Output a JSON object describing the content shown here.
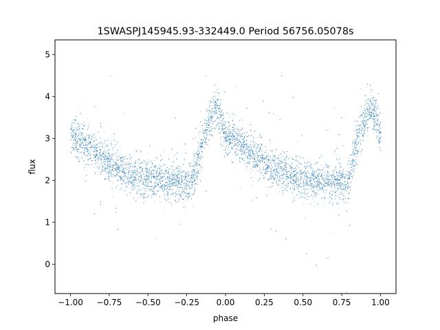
{
  "chart_data": {
    "type": "scatter",
    "title": "1SWASPJ145945.93-332449.0 Period 56756.05078s",
    "xlabel": "phase",
    "ylabel": "flux",
    "xlim": [
      -1.1,
      1.1
    ],
    "ylim": [
      -0.7,
      5.35
    ],
    "xticks": [
      -1.0,
      -0.75,
      -0.5,
      -0.25,
      0.0,
      0.25,
      0.5,
      0.75,
      1.0
    ],
    "xtick_labels": [
      "−1.00",
      "−0.75",
      "−0.50",
      "−0.25",
      "0.00",
      "0.25",
      "0.50",
      "0.75",
      "1.00"
    ],
    "yticks": [
      0,
      1,
      2,
      3,
      4,
      5
    ],
    "ytick_labels": [
      "0",
      "1",
      "2",
      "3",
      "4",
      "5"
    ],
    "grid": false,
    "point_color": "#1f77b4",
    "light_curve_profile": {
      "description_points_phase": [
        0.0,
        0.1,
        0.2,
        0.3,
        0.4,
        0.5,
        0.6,
        0.7,
        0.78,
        0.85,
        0.9,
        0.94,
        1.0
      ],
      "description_points_flux": [
        3.1,
        2.85,
        2.55,
        2.3,
        2.15,
        2.05,
        2.0,
        1.95,
        1.95,
        2.9,
        3.5,
        3.75,
        3.1
      ],
      "scatter_sigma": 0.22
    }
  }
}
